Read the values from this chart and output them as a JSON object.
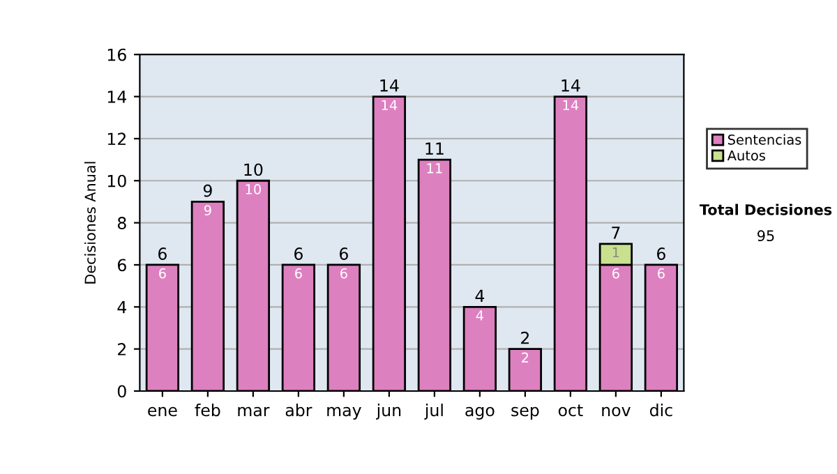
{
  "chart_data": {
    "type": "bar",
    "stacked": true,
    "categories": [
      "ene",
      "feb",
      "mar",
      "abr",
      "may",
      "jun",
      "jul",
      "ago",
      "sep",
      "oct",
      "nov",
      "dic"
    ],
    "series": [
      {
        "name": "Sentencias",
        "color": "#dd80c0",
        "values": [
          6,
          9,
          10,
          6,
          6,
          14,
          11,
          4,
          2,
          14,
          6,
          6
        ]
      },
      {
        "name": "Autos",
        "color": "#c9e08f",
        "values": [
          null,
          null,
          null,
          null,
          null,
          null,
          null,
          null,
          null,
          null,
          1,
          null
        ]
      }
    ],
    "totals": [
      "6",
      "9",
      "10",
      "6",
      "6",
      "14",
      "11",
      "4",
      "2",
      "14",
      "7",
      "6"
    ],
    "data_labels": true,
    "ylabel": "Decisiones Anual",
    "ylim": [
      0,
      16
    ],
    "yticks": [
      0,
      2,
      4,
      6,
      8,
      10,
      12,
      14,
      16
    ],
    "grid": "y",
    "legend": "right",
    "annotations": [
      "Total Decisiones",
      "95"
    ]
  }
}
